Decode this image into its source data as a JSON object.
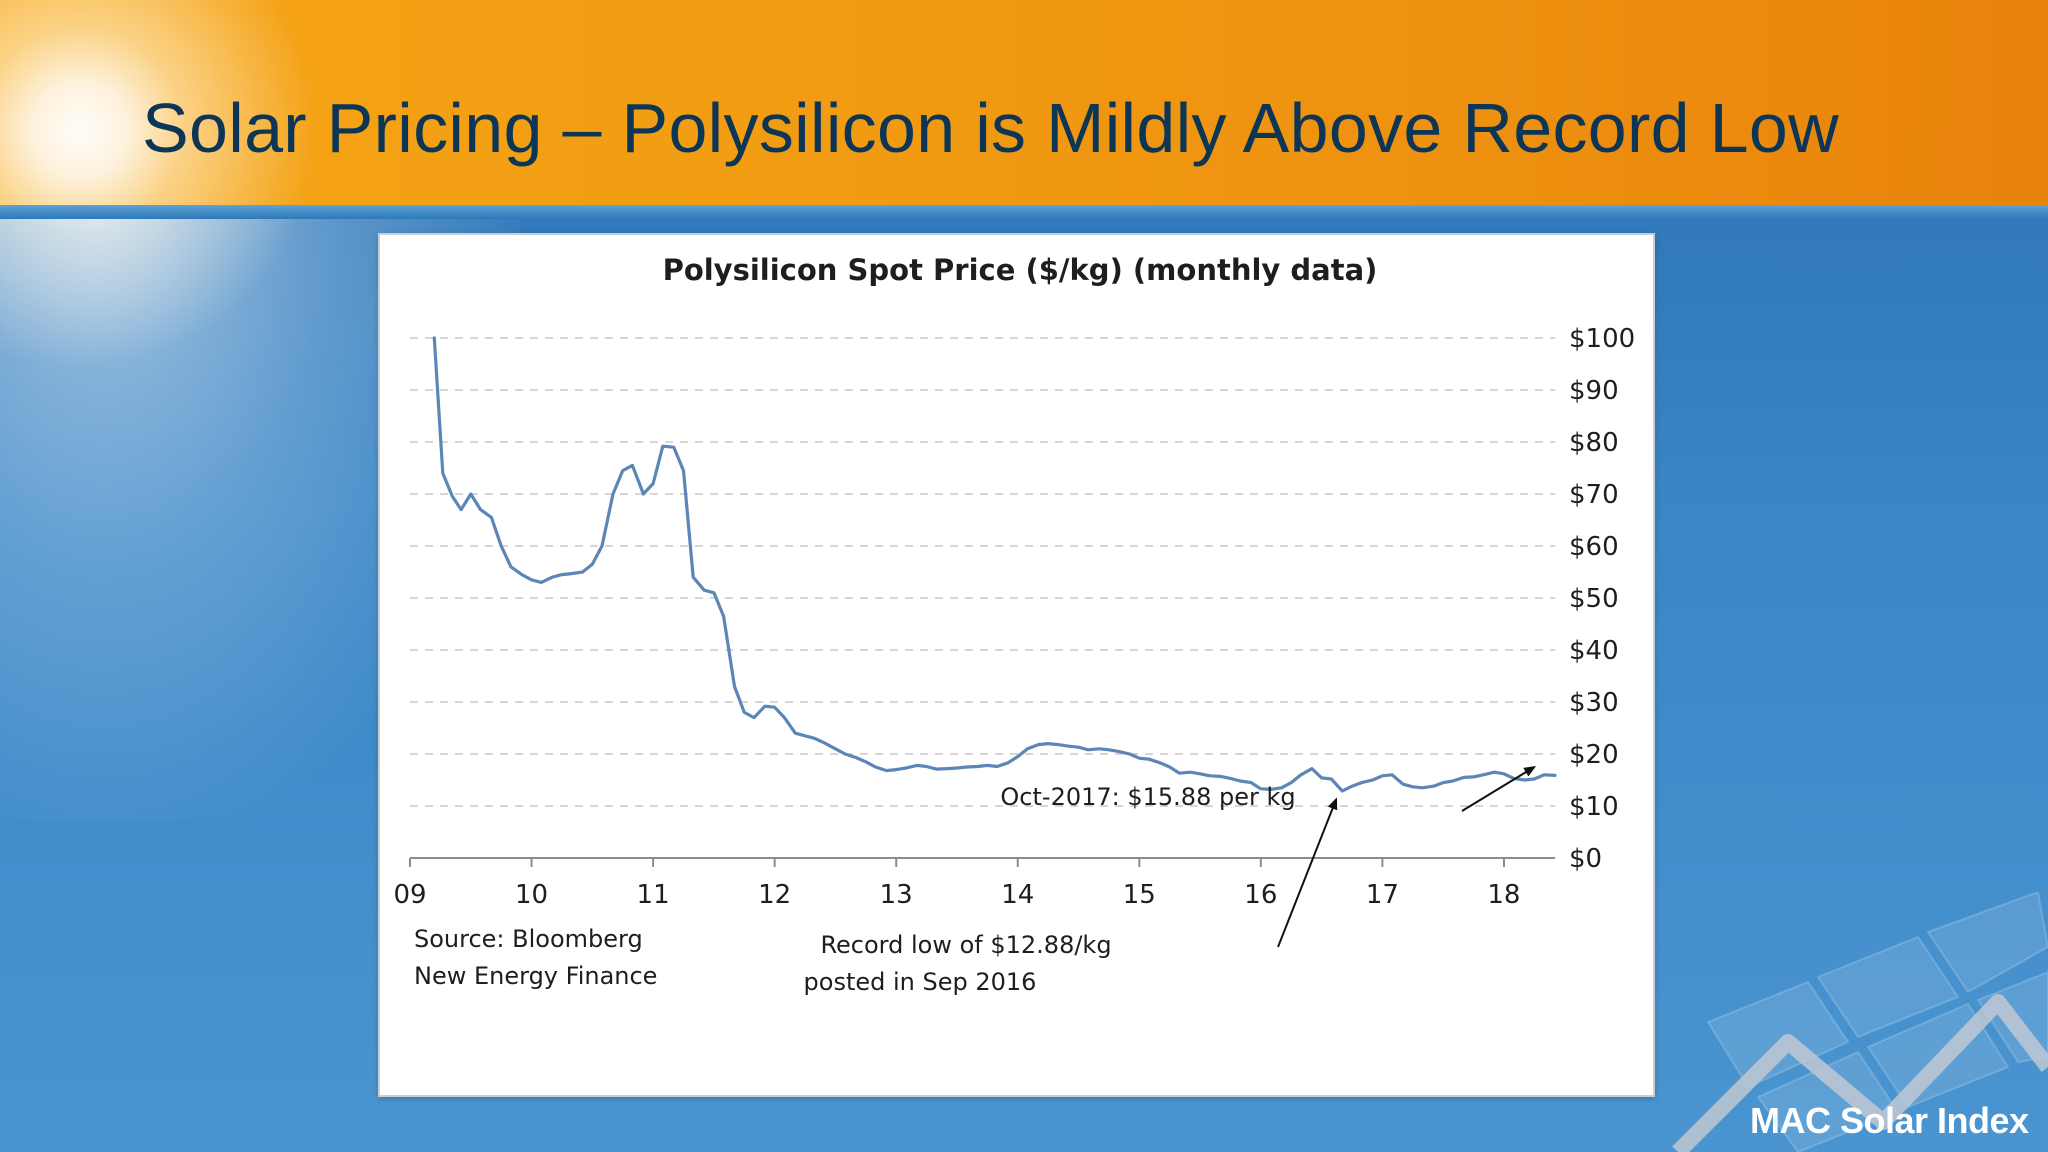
{
  "slide": {
    "title": "Solar Pricing – Polysilicon is Mildly Above Record Low",
    "logo": "MAC Solar Index"
  },
  "colors": {
    "line": "#5b86b5",
    "grid": "#c8c8c8",
    "axis": "#8c8c8c",
    "text": "#1e1e1e"
  },
  "chart_data": {
    "type": "line",
    "title": "Polysilicon Spot Price ($/kg) (monthly data)",
    "xlabel": "",
    "ylabel": "",
    "xlim": [
      2009.0,
      2018.42
    ],
    "ylim": [
      0,
      100
    ],
    "y_axis_side": "right",
    "grid": "horizontal dashed",
    "x_ticks": [
      {
        "value": 2009,
        "label": "09"
      },
      {
        "value": 2010,
        "label": "10"
      },
      {
        "value": 2011,
        "label": "11"
      },
      {
        "value": 2012,
        "label": "12"
      },
      {
        "value": 2013,
        "label": "13"
      },
      {
        "value": 2014,
        "label": "14"
      },
      {
        "value": 2015,
        "label": "15"
      },
      {
        "value": 2016,
        "label": "16"
      },
      {
        "value": 2017,
        "label": "17"
      },
      {
        "value": 2018,
        "label": "18"
      }
    ],
    "y_ticks": [
      {
        "value": 0,
        "label": "$0"
      },
      {
        "value": 10,
        "label": "$10"
      },
      {
        "value": 20,
        "label": "$20"
      },
      {
        "value": 30,
        "label": "$30"
      },
      {
        "value": 40,
        "label": "$40"
      },
      {
        "value": 50,
        "label": "$50"
      },
      {
        "value": 60,
        "label": "$60"
      },
      {
        "value": 70,
        "label": "$70"
      },
      {
        "value": 80,
        "label": "$80"
      },
      {
        "value": 90,
        "label": "$90"
      },
      {
        "value": 100,
        "label": "$100"
      }
    ],
    "series": [
      {
        "name": "Polysilicon Spot Price",
        "x": [
          2009.2,
          2009.27,
          2009.35,
          2009.42,
          2009.5,
          2009.58,
          2009.67,
          2009.75,
          2009.83,
          2009.92,
          2010.0,
          2010.08,
          2010.17,
          2010.25,
          2010.33,
          2010.42,
          2010.5,
          2010.58,
          2010.67,
          2010.75,
          2010.83,
          2010.92,
          2011.0,
          2011.08,
          2011.17,
          2011.25,
          2011.33,
          2011.42,
          2011.5,
          2011.58,
          2011.67,
          2011.75,
          2011.83,
          2011.92,
          2012.0,
          2012.08,
          2012.17,
          2012.25,
          2012.33,
          2012.42,
          2012.5,
          2012.58,
          2012.67,
          2012.75,
          2012.83,
          2012.92,
          2013.0,
          2013.08,
          2013.17,
          2013.25,
          2013.33,
          2013.42,
          2013.5,
          2013.58,
          2013.67,
          2013.75,
          2013.83,
          2013.92,
          2014.0,
          2014.08,
          2014.17,
          2014.25,
          2014.33,
          2014.42,
          2014.5,
          2014.58,
          2014.67,
          2014.75,
          2014.83,
          2014.92,
          2015.0,
          2015.08,
          2015.17,
          2015.25,
          2015.33,
          2015.42,
          2015.5,
          2015.58,
          2015.67,
          2015.75,
          2015.83,
          2015.92,
          2016.0,
          2016.08,
          2016.17,
          2016.25,
          2016.33,
          2016.42,
          2016.5,
          2016.58,
          2016.67,
          2016.75,
          2016.83,
          2016.92,
          2017.0,
          2017.08,
          2017.17,
          2017.25,
          2017.33,
          2017.42,
          2017.5,
          2017.58,
          2017.67,
          2017.75,
          2017.83,
          2017.92,
          2018.0,
          2018.08,
          2018.17,
          2018.25,
          2018.33,
          2018.42
        ],
        "values": [
          100,
          74,
          69.5,
          67,
          70,
          67,
          65.5,
          60,
          56,
          54.5,
          53.5,
          53,
          54,
          54.5,
          54.7,
          55,
          56.5,
          60,
          70,
          74.5,
          75.5,
          70,
          72,
          79.2,
          79,
          74.5,
          54,
          51.5,
          51,
          46.5,
          33,
          28,
          27,
          29.2,
          29,
          27,
          24,
          23.5,
          23,
          22,
          21,
          20,
          19.3,
          18.5,
          17.5,
          16.8,
          17,
          17.3,
          17.8,
          17.6,
          17.1,
          17.2,
          17.3,
          17.5,
          17.6,
          17.8,
          17.6,
          18.3,
          19.5,
          21,
          21.8,
          22,
          21.8,
          21.5,
          21.3,
          20.8,
          21,
          20.8,
          20.5,
          20,
          19.2,
          19,
          18.3,
          17.5,
          16.3,
          16.5,
          16.2,
          15.8,
          15.7,
          15.3,
          14.8,
          14.5,
          13.3,
          13.2,
          13.5,
          14.5,
          16,
          17.2,
          15.4,
          15.2,
          12.88,
          13.8,
          14.5,
          15,
          15.8,
          16,
          14.2,
          13.7,
          13.5,
          13.8,
          14.5,
          14.8,
          15.5,
          15.6,
          16,
          16.5,
          16.2,
          15.3,
          15,
          15.2,
          16,
          15.88
        ]
      }
    ],
    "annotations": [
      {
        "id": "oct2017",
        "text": "Oct-2017:  $15.88 per kg",
        "target_x": 2018.25,
        "target_y": 17.5
      },
      {
        "id": "record_low",
        "lines": [
          "Record low of $12.88/kg",
          "posted in Sep 2016"
        ],
        "target_x": 2016.62,
        "target_y": 11.3
      }
    ],
    "source": [
      "Source:  Bloomberg",
      "New Energy Finance"
    ]
  }
}
